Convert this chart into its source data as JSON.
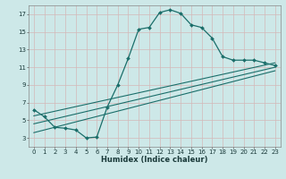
{
  "xlabel": "Humidex (Indice chaleur)",
  "bg_color": "#cde8e8",
  "grid_color": "#b8d8d8",
  "line_color": "#1a6e6a",
  "xlim": [
    -0.5,
    23.5
  ],
  "ylim": [
    2,
    18
  ],
  "xticks": [
    0,
    1,
    2,
    3,
    4,
    5,
    6,
    7,
    8,
    9,
    10,
    11,
    12,
    13,
    14,
    15,
    16,
    17,
    18,
    19,
    20,
    21,
    22,
    23
  ],
  "yticks": [
    3,
    5,
    7,
    9,
    11,
    13,
    15,
    17
  ],
  "curve1_x": [
    0,
    1,
    2,
    3,
    4,
    5,
    6,
    7,
    8,
    9,
    10,
    11,
    12,
    13,
    14,
    15,
    16,
    17,
    18,
    19,
    20,
    21,
    22,
    23
  ],
  "curve1_y": [
    6.2,
    5.4,
    4.2,
    4.1,
    3.9,
    3.0,
    3.1,
    6.5,
    9.0,
    12.0,
    15.3,
    15.5,
    17.2,
    17.5,
    17.1,
    15.8,
    15.5,
    14.3,
    12.2,
    11.8,
    11.8,
    11.8,
    11.5,
    11.2
  ],
  "line2_x": [
    0,
    23
  ],
  "line2_y": [
    3.6,
    10.6
  ],
  "line3_x": [
    0,
    23
  ],
  "line3_y": [
    4.6,
    11.0
  ],
  "line4_x": [
    0,
    23
  ],
  "line4_y": [
    5.5,
    11.5
  ]
}
